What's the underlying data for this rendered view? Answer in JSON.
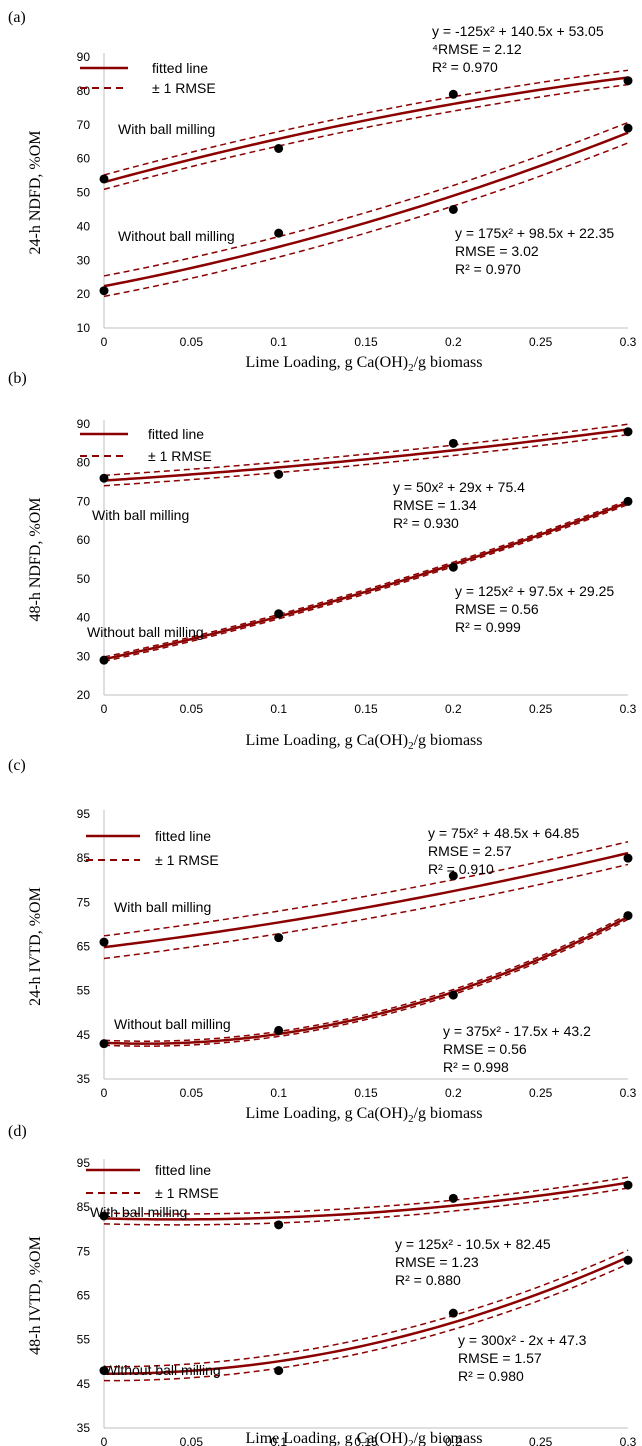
{
  "colors": {
    "line": "#8b0000",
    "point": "#000000",
    "axis": "#bfbfbf",
    "text": "#000000"
  },
  "chart_data": [
    {
      "panel_label": "(a)",
      "type": "scatter",
      "ylabel": "24-h NDFD, %OM",
      "xlabel": "Lime Loading, g Ca(OH)₂/g biomass",
      "xlim": [
        0,
        0.3
      ],
      "ylim": [
        10,
        90
      ],
      "x_ticks": [
        "0",
        "0.05",
        "0.1",
        "0.15",
        "0.2",
        "0.25",
        "0.3"
      ],
      "y_ticks": [
        "10",
        "20",
        "30",
        "40",
        "50",
        "60",
        "70",
        "80",
        "90"
      ],
      "legend": {
        "fitted": "fitted line",
        "rmse": "± 1 RMSE",
        "position": "top-left"
      },
      "series": [
        {
          "name": "With ball milling",
          "x": [
            0,
            0.1,
            0.2,
            0.3
          ],
          "y": [
            54,
            63,
            79,
            83
          ],
          "fit": {
            "a": -125,
            "b": 140.5,
            "c": 53.05
          },
          "rmse": 2.12,
          "eq_lines": [
            "y = -125x² + 140.5x + 53.05",
            "⁴RMSE = 2.12",
            "R² = 0.970"
          ]
        },
        {
          "name": "Without ball milling",
          "x": [
            0,
            0.1,
            0.2,
            0.3
          ],
          "y": [
            21,
            38,
            45,
            69
          ],
          "fit": {
            "a": 175,
            "b": 98.5,
            "c": 22.35
          },
          "rmse": 3.02,
          "eq_lines": [
            "y = 175x² + 98.5x + 22.35",
            "RMSE = 3.02",
            "R² = 0.970"
          ]
        }
      ]
    },
    {
      "panel_label": "(b)",
      "type": "scatter",
      "ylabel": "48-h NDFD, %OM",
      "xlabel": "Lime Loading, g Ca(OH)₂/g biomass",
      "xlim": [
        0,
        0.3
      ],
      "ylim": [
        20,
        90
      ],
      "x_ticks": [
        "0",
        "0.05",
        "0.1",
        "0.15",
        "0.2",
        "0.25",
        "0.3"
      ],
      "y_ticks": [
        "20",
        "30",
        "40",
        "50",
        "60",
        "70",
        "80",
        "90"
      ],
      "legend": {
        "fitted": "fitted line",
        "rmse": "± 1 RMSE",
        "position": "top-left"
      },
      "series": [
        {
          "name": "With ball milling",
          "x": [
            0,
            0.1,
            0.2,
            0.3
          ],
          "y": [
            76,
            77,
            85,
            88
          ],
          "fit": {
            "a": 50,
            "b": 29,
            "c": 75.4
          },
          "rmse": 1.34,
          "eq_lines": [
            "y = 50x² + 29x + 75.4",
            "RMSE = 1.34",
            "R² = 0.930"
          ]
        },
        {
          "name": "Without ball milling",
          "x": [
            0,
            0.1,
            0.2,
            0.3
          ],
          "y": [
            29,
            41,
            53,
            70
          ],
          "fit": {
            "a": 125,
            "b": 97.5,
            "c": 29.25
          },
          "rmse": 0.56,
          "eq_lines": [
            "y = 125x² + 97.5x + 29.25",
            "RMSE = 0.56",
            "R² = 0.999"
          ]
        }
      ]
    },
    {
      "panel_label": "(c)",
      "type": "scatter",
      "ylabel": "24-h IVTD, %OM",
      "xlabel": "Lime Loading, g Ca(OH)₂/g biomass",
      "xlim": [
        0,
        0.3
      ],
      "ylim": [
        35,
        95
      ],
      "x_ticks": [
        "0",
        "0.05",
        "0.1",
        "0.15",
        "0.2",
        "0.25",
        "0.3"
      ],
      "y_ticks": [
        "35",
        "45",
        "55",
        "65",
        "75",
        "85",
        "95"
      ],
      "legend": {
        "fitted": "fitted line",
        "rmse": "± 1 RMSE",
        "position": "top-left"
      },
      "series": [
        {
          "name": "With ball milling",
          "x": [
            0,
            0.1,
            0.2,
            0.3
          ],
          "y": [
            66,
            67,
            81,
            85
          ],
          "fit": {
            "a": 75,
            "b": 48.5,
            "c": 64.85
          },
          "rmse": 2.57,
          "eq_lines": [
            "y = 75x² + 48.5x + 64.85",
            "RMSE = 2.57",
            "R² = 0.910"
          ]
        },
        {
          "name": "Without ball milling",
          "x": [
            0,
            0.1,
            0.2,
            0.3
          ],
          "y": [
            43,
            46,
            54,
            72
          ],
          "fit": {
            "a": 375,
            "b": -17.5,
            "c": 43.2
          },
          "rmse": 0.56,
          "eq_lines": [
            "y = 375x² - 17.5x + 43.2",
            "RMSE = 0.56",
            "R² = 0.998"
          ]
        }
      ]
    },
    {
      "panel_label": "(d)",
      "type": "scatter",
      "ylabel": "48-h IVTD, %OM",
      "xlabel": "Lime Loading, g Ca(OH)₂/g biomass",
      "xlim": [
        0,
        0.3
      ],
      "ylim": [
        35,
        95
      ],
      "x_ticks": [
        "0",
        "0.05",
        "0.1",
        "0.15",
        "0.2",
        "0.25",
        "0.3"
      ],
      "y_ticks": [
        "35",
        "45",
        "55",
        "65",
        "75",
        "85",
        "95"
      ],
      "legend": {
        "fitted": "fitted line",
        "rmse": "± 1 RMSE",
        "position": "top-left"
      },
      "series": [
        {
          "name": "With ball milling",
          "x": [
            0,
            0.1,
            0.2,
            0.3
          ],
          "y": [
            83,
            81,
            87,
            90
          ],
          "fit": {
            "a": 125,
            "b": -10.5,
            "c": 82.45
          },
          "rmse": 1.23,
          "eq_lines": [
            "y = 125x² - 10.5x + 82.45",
            "RMSE = 1.23",
            "R² = 0.880"
          ]
        },
        {
          "name": "Without ball milling",
          "x": [
            0,
            0.1,
            0.2,
            0.3
          ],
          "y": [
            48,
            48,
            61,
            73
          ],
          "fit": {
            "a": 300,
            "b": -2,
            "c": 47.3
          },
          "rmse": 1.57,
          "eq_lines": [
            "y = 300x² - 2x + 47.3",
            "RMSE = 1.57",
            "R² = 0.980"
          ]
        }
      ]
    }
  ]
}
